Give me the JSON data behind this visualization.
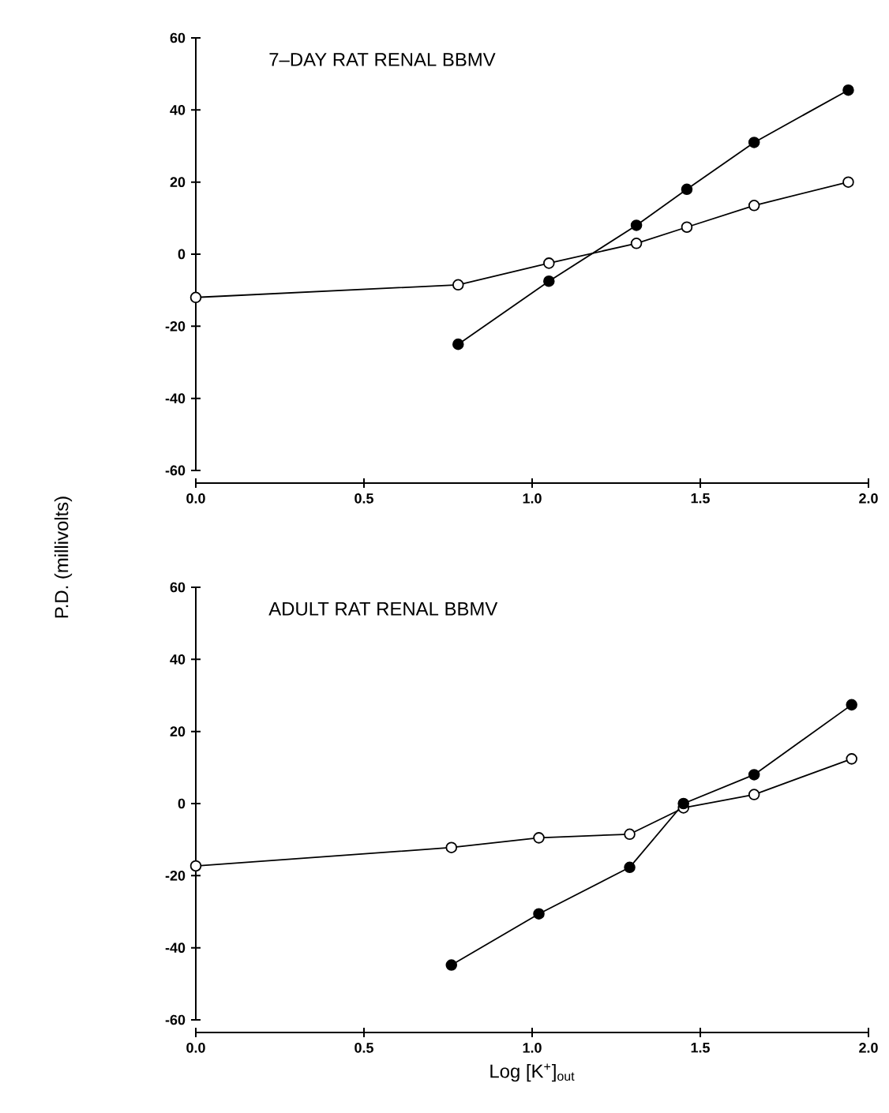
{
  "chart_data": [
    {
      "type": "line",
      "title": "7–DAY RAT RENAL BBMV",
      "ylabel": "P.D. (millivolts)",
      "xlim": [
        0,
        2
      ],
      "ylim": [
        -60,
        60
      ],
      "xticks": [
        {
          "value": 0,
          "label": "0.0"
        },
        {
          "value": 0.5,
          "label": "0.5"
        },
        {
          "value": 1,
          "label": "1.0"
        },
        {
          "value": 1.5,
          "label": "1.5"
        },
        {
          "value": 2,
          "label": "2.0"
        }
      ],
      "yticks": [
        -60,
        -40,
        -20,
        0,
        20,
        40,
        60
      ],
      "line_style": "solid",
      "grid": false,
      "series": [
        {
          "color": "#000000",
          "marker": "open circle",
          "x": [
            0.0,
            0.78,
            1.05,
            1.31,
            1.46,
            1.66,
            1.94
          ],
          "values": [
            -12,
            -8.5,
            -2.5,
            3,
            7.5,
            13.5,
            20
          ]
        },
        {
          "color": "#000000",
          "marker": "circle",
          "x": [
            0.78,
            1.05,
            1.31,
            1.46,
            1.66,
            1.94
          ],
          "values": [
            -25,
            -7.5,
            8,
            18,
            31,
            45.5
          ]
        }
      ]
    },
    {
      "type": "line",
      "title": "ADULT RAT RENAL BBMV",
      "xlabel": "Log [K$^{+}$]$_{out}$",
      "xlim": [
        0,
        2
      ],
      "ylim": [
        -60,
        60
      ],
      "xticks": [
        {
          "value": 0,
          "label": "0.0"
        },
        {
          "value": 0.5,
          "label": "0.5"
        },
        {
          "value": 1,
          "label": "1.0"
        },
        {
          "value": 1.5,
          "label": "1.5"
        },
        {
          "value": 2,
          "label": "2.0"
        }
      ],
      "yticks": [
        -60,
        -40,
        -20,
        0,
        20,
        40,
        60
      ],
      "line_style": "solid",
      "grid": false,
      "series": [
        {
          "color": "#000000",
          "marker": "open circle",
          "x": [
            0.0,
            0.76,
            1.02,
            1.29,
            1.45,
            1.66,
            1.95
          ],
          "values": [
            -17.3,
            -12.2,
            -9.5,
            -8.5,
            -1.2,
            2.5,
            12.4
          ]
        },
        {
          "color": "#000000",
          "marker": "circle",
          "x": [
            0.76,
            1.02,
            1.29,
            1.45,
            1.66,
            1.95
          ],
          "values": [
            -44.8,
            -30.6,
            -17.7,
            0,
            8,
            27.4
          ]
        }
      ]
    }
  ]
}
